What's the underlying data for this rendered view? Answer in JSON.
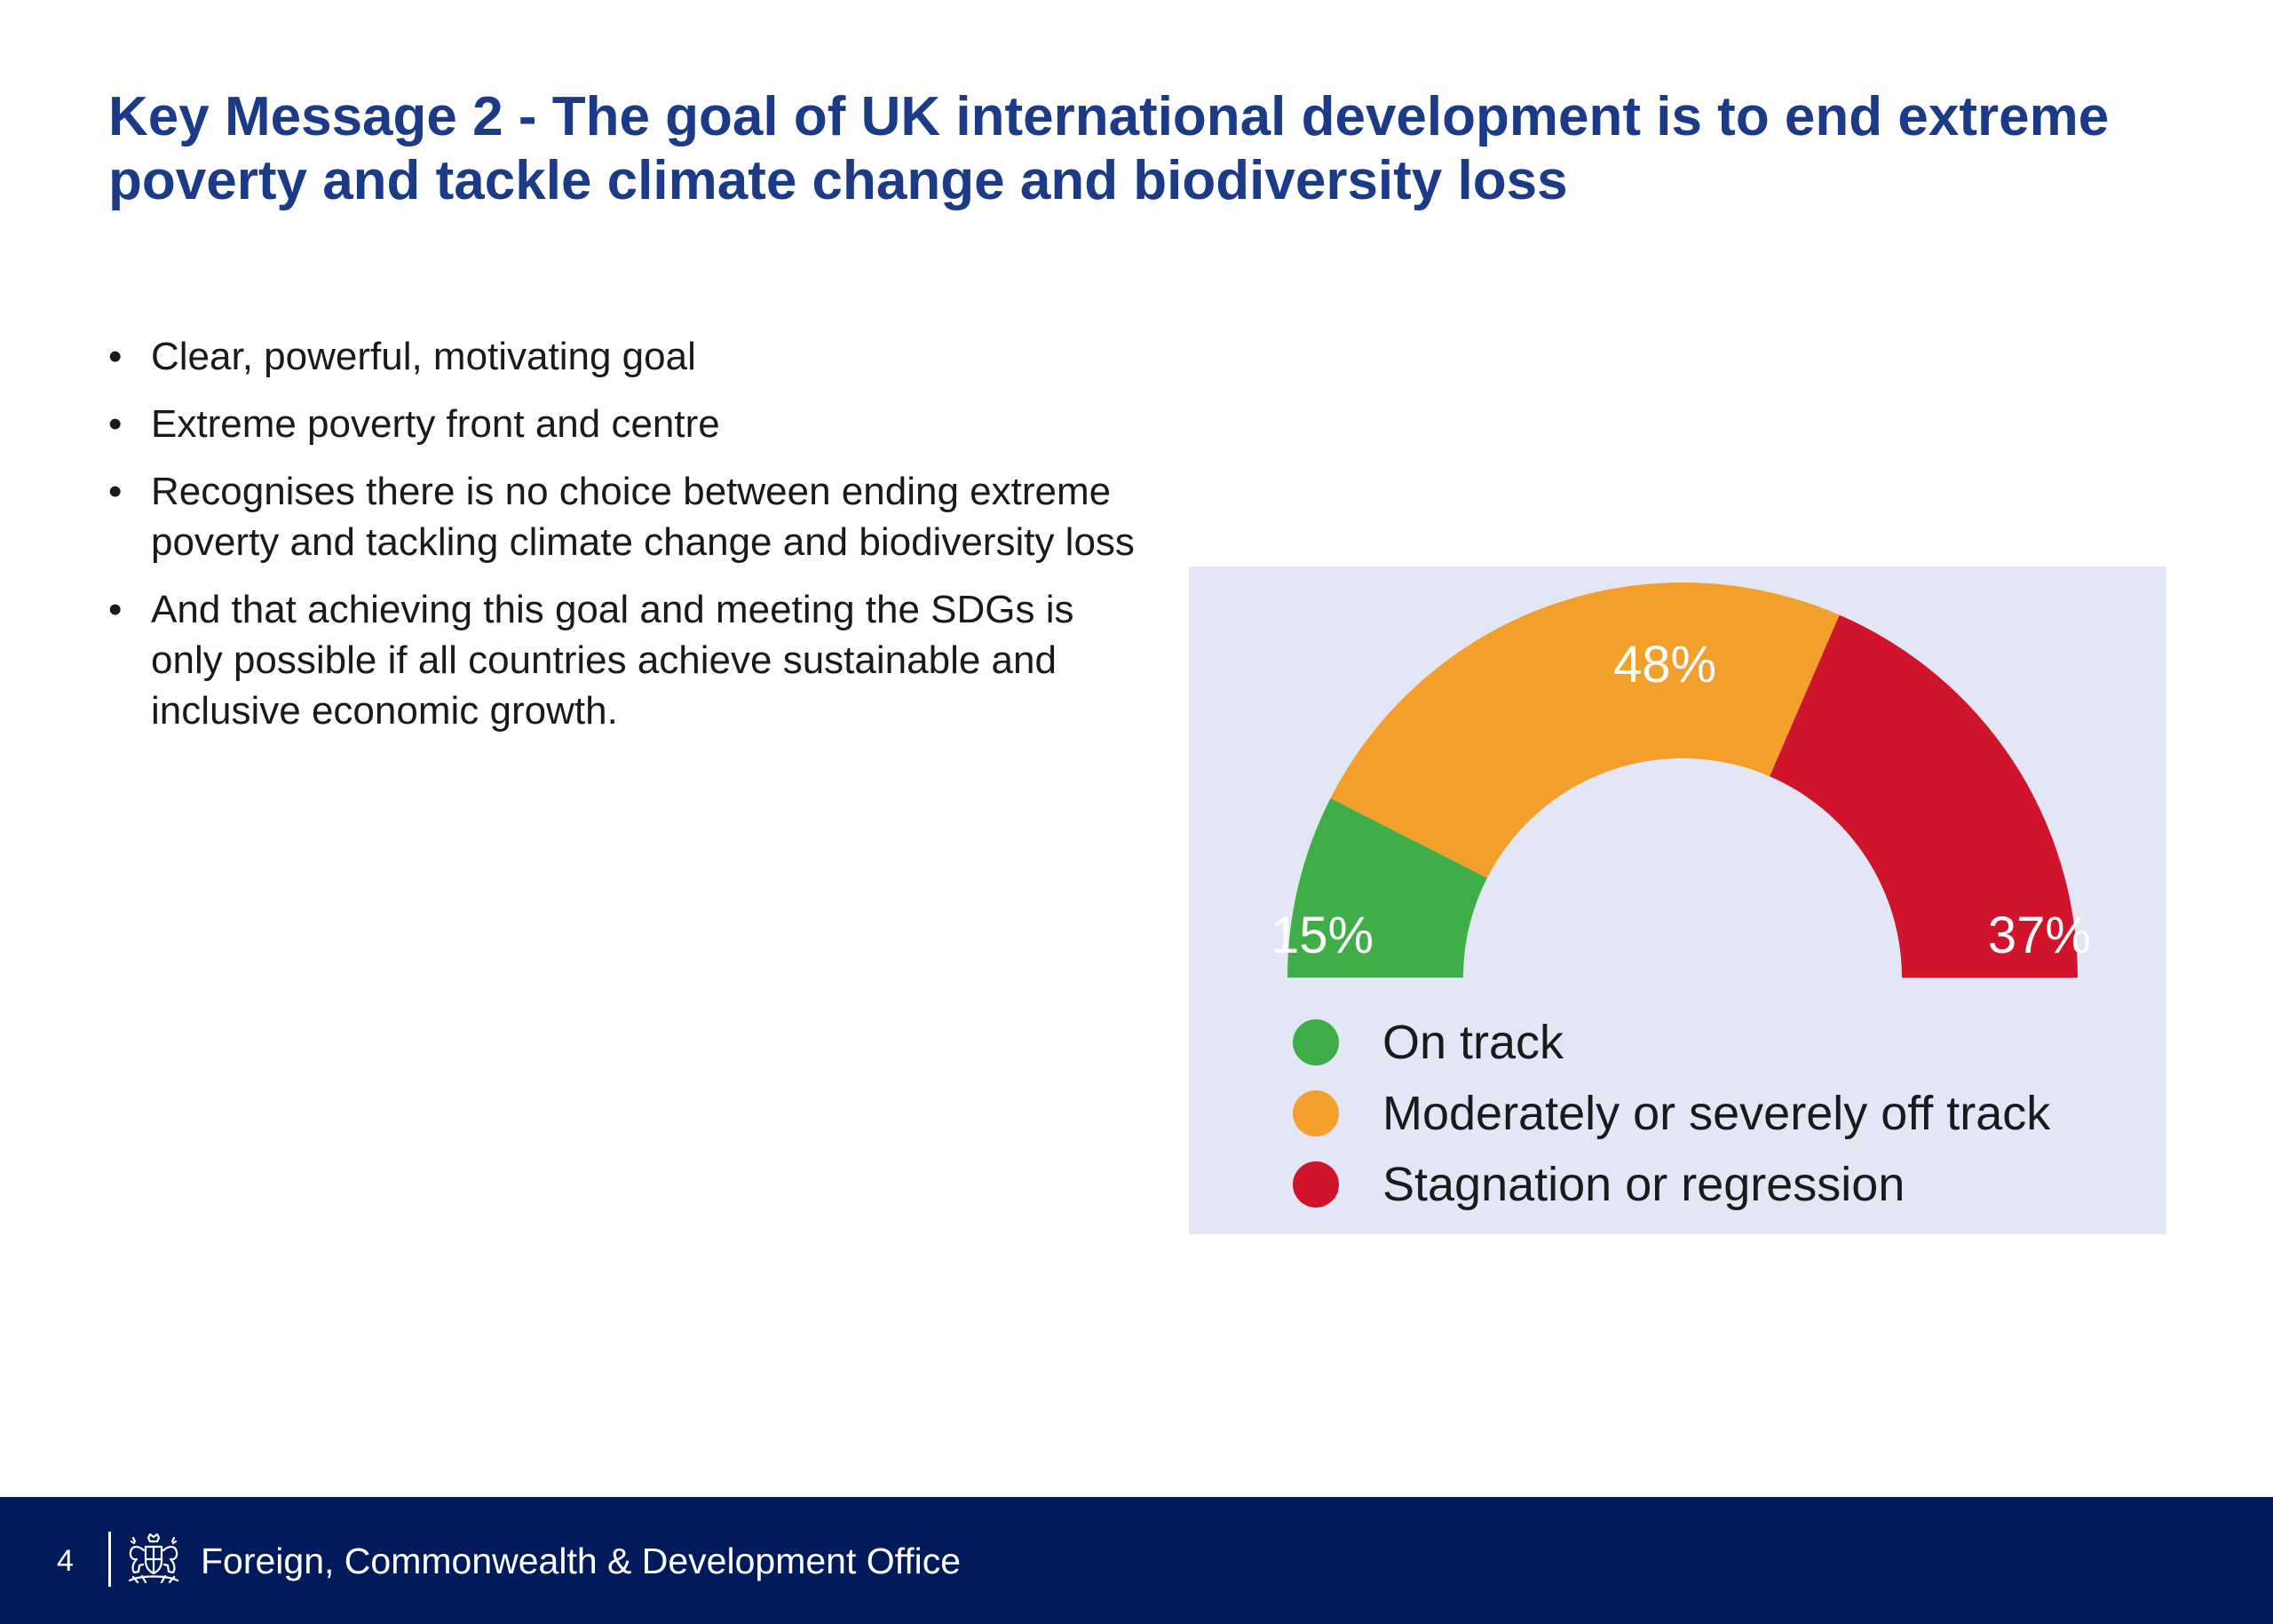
{
  "slide": {
    "title": "Key Message 2 - The goal of UK international development is to end extreme poverty and tackle climate change and biodiversity loss",
    "bullet_glyph": "•",
    "bullets": [
      "Clear, powerful, motivating goal",
      "Extreme poverty front and centre",
      "Recognises there is no choice between ending extreme poverty and tackling climate change and biodiversity loss",
      "And that achieving this goal and meeting the SDGs is only possible if all countries achieve sustainable and inclusive economic growth."
    ]
  },
  "chart_data": {
    "type": "pie",
    "shape": "semicircle gauge",
    "legend_position": "bottom-left",
    "unit": "%",
    "categories": [
      "On track",
      "Moderately or severely off track",
      "Stagnation or regression"
    ],
    "values": [
      15,
      48,
      37
    ],
    "value_labels": [
      "15%",
      "48%",
      "37%"
    ],
    "colors": [
      "#3fae49",
      "#f39f2b",
      "#cf142b"
    ],
    "background_color": "#e3e7f5"
  },
  "footer": {
    "page_number": "4",
    "logo_icon": "royal-coat-of-arms-icon",
    "org_name": "Foreign, Commonwealth & Development Office",
    "background_color": "#001a5c"
  }
}
